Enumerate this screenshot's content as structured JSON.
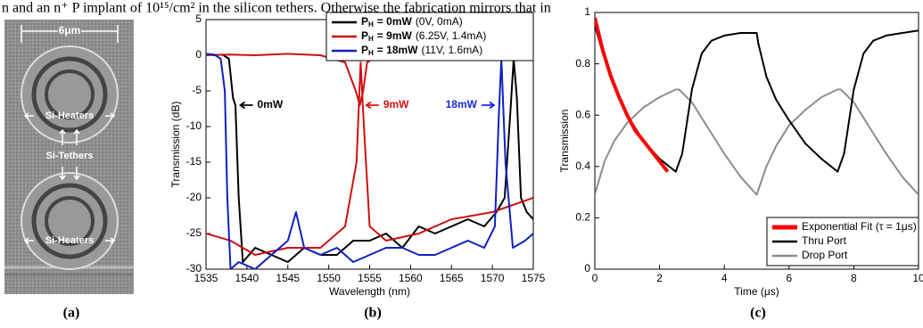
{
  "header_text": "n and an n⁺ P implant of 10¹⁵/cm² in the silicon tethers.  Otherwise the fabrication mirrors that in",
  "panel_a": {
    "scale_bar": "6μm",
    "labels": [
      "Si-Heaters",
      "Si-Tethers",
      "Si-Heaters"
    ]
  },
  "captions": [
    "(a)",
    "(b)",
    "(c)"
  ],
  "chart_data": [
    {
      "type": "line",
      "xlabel": "Wavelength (nm)",
      "ylabel": "Transmission (dB)",
      "xlim": [
        1535,
        1575
      ],
      "xticks": [
        1535,
        1540,
        1545,
        1550,
        1555,
        1560,
        1565,
        1570,
        1575
      ],
      "ylim": [
        -30,
        5
      ],
      "yticks": [
        -30,
        -25,
        -20,
        -15,
        -10,
        -5,
        0,
        5
      ],
      "legend": "upper right",
      "legend_symbol": "P",
      "legend_subscript": "H",
      "series": [
        {
          "name": "= 0mW",
          "detail": "(0V, 0mA)",
          "color": "#000000",
          "x": [
            1535,
            1536,
            1537,
            1537.8,
            1538.3,
            1538.6,
            1539,
            1539.5,
            1541,
            1543,
            1545,
            1547,
            1549,
            1551,
            1553,
            1555,
            1557,
            1559,
            1561,
            1563,
            1565,
            1567,
            1569,
            1570.5,
            1571.5,
            1572.2,
            1572.6,
            1573,
            1573.5,
            1574.2,
            1575
          ],
          "values": [
            0.2,
            0,
            0.1,
            -0.5,
            -6,
            -7,
            -20,
            -29,
            -27,
            -28,
            -29,
            -27,
            -28,
            -28,
            -26,
            -26,
            -25,
            -27,
            -24,
            -25,
            -24,
            -23,
            -24,
            -22,
            -20,
            -8,
            -0.5,
            -6,
            -20,
            -22,
            -23
          ]
        },
        {
          "name": "= 9mW",
          "detail": "(6.25V, 1.4mA)",
          "color": "#cc1010",
          "x": [
            1535,
            1538,
            1541,
            1545,
            1549,
            1552,
            1553.3,
            1553.8,
            1554.2,
            1554.7,
            1556,
            1560,
            1565,
            1570,
            1575,
            null,
            1535,
            1538,
            1541,
            1545,
            1549,
            1552,
            1553.4,
            1553.9,
            1554.3,
            1555,
            1557,
            1561,
            1565,
            1570,
            1575
          ],
          "values": [
            0,
            0.1,
            0,
            0.2,
            0,
            -1,
            -5,
            -7,
            -5,
            -1,
            0,
            0.1,
            0,
            0.1,
            0,
            null,
            -25,
            -26,
            -28,
            -27,
            -27,
            -24,
            -15,
            -1,
            -10,
            -24,
            -26,
            -25,
            -23,
            -22,
            -20
          ]
        },
        {
          "name": "= 18mW",
          "detail": "(11V, 1.6mA)",
          "color": "#1020c0",
          "x": [
            1535,
            1536,
            1536.8,
            1537.3,
            1537.6,
            1538,
            1539,
            1541,
            1543,
            1545,
            1546,
            1547,
            1549,
            1551,
            1553,
            1555,
            1557,
            1559,
            1561,
            1563,
            1565,
            1567,
            1569,
            1570.3,
            1570.8,
            1571.1,
            1571.6,
            1572.5,
            1574,
            1575
          ],
          "values": [
            0.2,
            0.1,
            -0.5,
            -5,
            -20,
            -30,
            -29,
            -30,
            -28,
            -26,
            -22,
            -27,
            -28,
            -27,
            -29,
            -28,
            -27,
            -27,
            -28,
            -28,
            -27,
            -26,
            -27,
            -24,
            -8,
            -0.5,
            -15,
            -27,
            -26,
            -25
          ]
        }
      ],
      "annotations": [
        {
          "text": "0mW",
          "color": "#000000"
        },
        {
          "text": "9mW",
          "color": "#e01010"
        },
        {
          "text": "18mW",
          "color": "#1a2ae0"
        }
      ]
    },
    {
      "type": "line",
      "xlabel": "Time (μs)",
      "ylabel": "Transmission",
      "xlim": [
        0,
        10
      ],
      "xticks": [
        0,
        2,
        4,
        6,
        8,
        10
      ],
      "ylim": [
        0,
        1
      ],
      "yticks": [
        0,
        0.2,
        0.4,
        0.6,
        0.8,
        1
      ],
      "legend": "lower right",
      "series": [
        {
          "name": "Exponential Fit (τ = 1μs)",
          "color": "#ff0000",
          "x": [
            0,
            0.25,
            0.5,
            0.75,
            1,
            1.25,
            1.5,
            1.75,
            2,
            2.25
          ],
          "values": [
            0.98,
            0.85,
            0.75,
            0.67,
            0.6,
            0.54,
            0.5,
            0.46,
            0.42,
            0.38
          ]
        },
        {
          "name": "Thru Port",
          "color": "#000000",
          "x": [
            0,
            0.25,
            0.5,
            1,
            1.5,
            2,
            2.5,
            2.7,
            3,
            3.3,
            3.6,
            4,
            4.5,
            5,
            5.05,
            5.3,
            5.6,
            6,
            6.5,
            7,
            7.5,
            7.7,
            8,
            8.3,
            8.6,
            9,
            9.5,
            10
          ],
          "values": [
            0.95,
            0.84,
            0.75,
            0.6,
            0.5,
            0.43,
            0.38,
            0.45,
            0.7,
            0.84,
            0.89,
            0.91,
            0.92,
            0.92,
            0.88,
            0.75,
            0.66,
            0.58,
            0.49,
            0.43,
            0.38,
            0.45,
            0.7,
            0.84,
            0.89,
            0.91,
            0.92,
            0.93
          ]
        },
        {
          "name": "Drop Port",
          "color": "#8c8c8c",
          "x": [
            0,
            0.3,
            0.6,
            1,
            1.5,
            2,
            2.5,
            2.6,
            3,
            3.5,
            4,
            4.5,
            5,
            5.3,
            5.6,
            6,
            6.5,
            7,
            7.5,
            7.6,
            8,
            8.5,
            9,
            9.5,
            10
          ],
          "values": [
            0.29,
            0.42,
            0.5,
            0.57,
            0.63,
            0.67,
            0.7,
            0.7,
            0.65,
            0.55,
            0.45,
            0.36,
            0.29,
            0.4,
            0.48,
            0.56,
            0.62,
            0.67,
            0.7,
            0.7,
            0.65,
            0.55,
            0.45,
            0.36,
            0.29
          ]
        }
      ]
    }
  ]
}
